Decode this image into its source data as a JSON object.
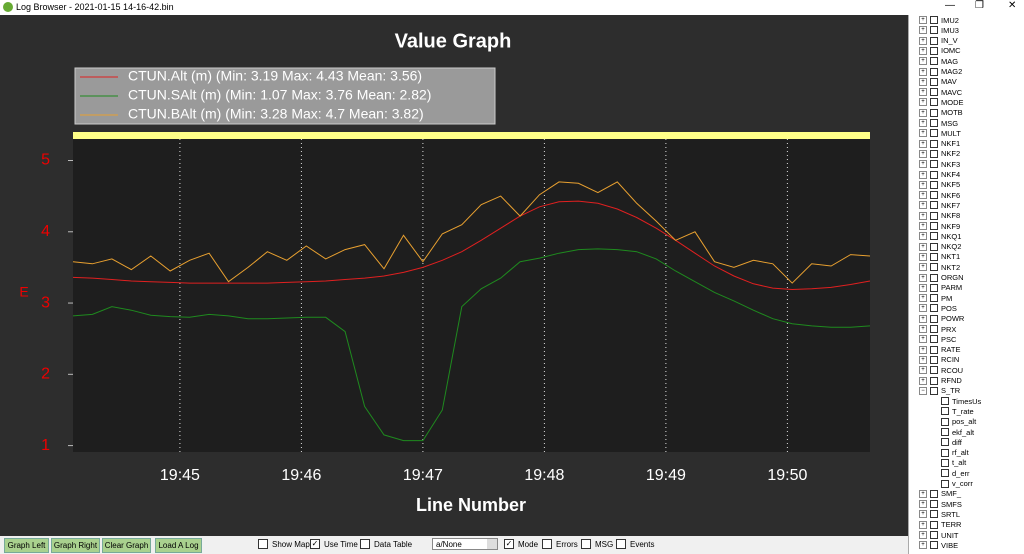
{
  "window": {
    "title": "Log Browser - 2021-01-15 14-16-42.bin"
  },
  "chart_data": {
    "type": "line",
    "title": "Value Graph",
    "x_label": "Line Number",
    "y_label": "E",
    "x": [
      1184.12,
      1184.28,
      1184.44,
      1184.6,
      1184.76,
      1184.92,
      1185.08,
      1185.24,
      1185.4,
      1185.56,
      1185.72,
      1185.88,
      1186.04,
      1186.2,
      1186.36,
      1186.52,
      1186.68,
      1186.84,
      1187.0,
      1187.16,
      1187.32,
      1187.48,
      1187.64,
      1187.8,
      1187.96,
      1188.12,
      1188.28,
      1188.44,
      1188.6,
      1188.76,
      1188.92,
      1189.08,
      1189.24,
      1189.4,
      1189.56,
      1189.72,
      1189.88,
      1190.04,
      1190.2,
      1190.36,
      1190.52,
      1190.68
    ],
    "series": [
      {
        "name": "CTUN.Alt (m) (Min: 3.19 Max: 4.43 Mean: 3.56)",
        "color": "#e02020",
        "values": [
          3.36,
          3.35,
          3.33,
          3.31,
          3.3,
          3.29,
          3.28,
          3.28,
          3.28,
          3.28,
          3.28,
          3.29,
          3.3,
          3.31,
          3.33,
          3.35,
          3.38,
          3.43,
          3.5,
          3.6,
          3.72,
          3.88,
          4.05,
          4.22,
          4.35,
          4.42,
          4.43,
          4.4,
          4.32,
          4.2,
          4.05,
          3.88,
          3.7,
          3.52,
          3.38,
          3.27,
          3.21,
          3.19,
          3.2,
          3.22,
          3.26,
          3.31
        ]
      },
      {
        "name": "CTUN.SAlt (m) (Min: 1.07 Max: 3.76 Mean: 2.82)",
        "color": "#1f8a1f",
        "values": [
          2.82,
          2.84,
          2.95,
          2.9,
          2.83,
          2.81,
          2.8,
          2.84,
          2.82,
          2.78,
          2.78,
          2.79,
          2.8,
          2.8,
          2.6,
          1.55,
          1.15,
          1.07,
          1.07,
          1.5,
          2.95,
          3.2,
          3.35,
          3.58,
          3.63,
          3.7,
          3.75,
          3.76,
          3.75,
          3.72,
          3.62,
          3.45,
          3.3,
          3.15,
          3.03,
          2.9,
          2.78,
          2.71,
          2.68,
          2.66,
          2.66,
          2.68
        ]
      },
      {
        "name": "CTUN.BAlt (m) (Min: 3.28 Max: 4.7 Mean: 3.82)",
        "color": "#e8a030",
        "values": [
          3.58,
          3.55,
          3.62,
          3.47,
          3.66,
          3.45,
          3.6,
          3.7,
          3.3,
          3.5,
          3.72,
          3.6,
          3.8,
          3.62,
          3.75,
          3.82,
          3.48,
          3.95,
          3.58,
          3.97,
          4.1,
          4.38,
          4.5,
          4.22,
          4.52,
          4.7,
          4.68,
          4.55,
          4.7,
          4.4,
          4.15,
          3.88,
          4.0,
          3.58,
          3.5,
          3.6,
          3.55,
          3.28,
          3.55,
          3.52,
          3.68,
          3.66
        ]
      }
    ],
    "xlim": [
      1184.12,
      1190.68
    ],
    "xticks": [
      {
        "value": 1185,
        "label": "19:45"
      },
      {
        "value": 1186,
        "label": "19:46"
      },
      {
        "value": 1187,
        "label": "19:47"
      },
      {
        "value": 1188,
        "label": "19:48"
      },
      {
        "value": 1189,
        "label": "19:49"
      },
      {
        "value": 1190,
        "label": "19:50"
      }
    ],
    "ylim": [
      0.91,
      5.4
    ],
    "yticks": [
      1,
      2,
      3,
      4,
      5
    ],
    "grid": true
  },
  "tree": [
    {
      "label": "IMU2"
    },
    {
      "label": "IMU3"
    },
    {
      "label": "IN_V"
    },
    {
      "label": "IOMC"
    },
    {
      "label": "MAG"
    },
    {
      "label": "MAG2"
    },
    {
      "label": "MAV"
    },
    {
      "label": "MAVC"
    },
    {
      "label": "MODE"
    },
    {
      "label": "MOTB"
    },
    {
      "label": "MSG"
    },
    {
      "label": "MULT"
    },
    {
      "label": "NKF1"
    },
    {
      "label": "NKF2"
    },
    {
      "label": "NKF3"
    },
    {
      "label": "NKF4"
    },
    {
      "label": "NKF5"
    },
    {
      "label": "NKF6"
    },
    {
      "label": "NKF7"
    },
    {
      "label": "NKF8"
    },
    {
      "label": "NKF9"
    },
    {
      "label": "NKQ1"
    },
    {
      "label": "NKQ2"
    },
    {
      "label": "NKT1"
    },
    {
      "label": "NKT2"
    },
    {
      "label": "ORGN"
    },
    {
      "label": "PARM"
    },
    {
      "label": "PM"
    },
    {
      "label": "POS"
    },
    {
      "label": "POWR"
    },
    {
      "label": "PRX"
    },
    {
      "label": "PSC"
    },
    {
      "label": "RATE"
    },
    {
      "label": "RCIN"
    },
    {
      "label": "RCOU"
    },
    {
      "label": "RFND"
    },
    {
      "label": "S_TR",
      "children": [
        "TimesUs",
        "T_rate",
        "pos_alt",
        "ekf_alt",
        "diff",
        "rf_alt",
        "t_alt",
        "d_err",
        "v_corr"
      ]
    },
    {
      "label": "SMF_"
    },
    {
      "label": "SMFS"
    },
    {
      "label": "SRTL"
    },
    {
      "label": "TERR"
    },
    {
      "label": "UNIT"
    },
    {
      "label": "VIBE"
    }
  ],
  "buttons": [
    "Graph Left",
    "Graph Right",
    "Clear Graph",
    "Load A Log"
  ],
  "options": [
    {
      "label": "Show Map",
      "checked": false
    },
    {
      "label": "Use Time",
      "checked": true
    },
    {
      "label": "Data Table",
      "checked": false
    }
  ],
  "dropdown": "a/None",
  "filters": [
    {
      "label": "Mode",
      "checked": true
    },
    {
      "label": "Errors",
      "checked": false
    },
    {
      "label": "MSG",
      "checked": false
    },
    {
      "label": "Events",
      "checked": false
    }
  ]
}
